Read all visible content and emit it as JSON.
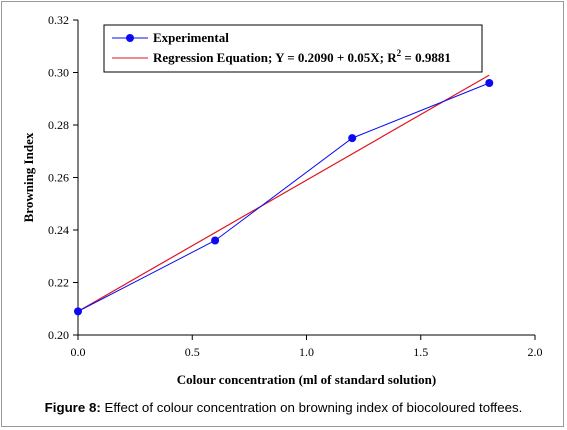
{
  "caption": {
    "figure_label": "Figure 8:",
    "text": " Effect of colour concentration on browning index of biocoloured toffees."
  },
  "colors": {
    "experimental": "#0b0bf0",
    "regression": "#e0141e",
    "axis": "#000000"
  },
  "chart_data": {
    "type": "line",
    "title": "",
    "xlabel": "Colour concentration (ml of standard solution)",
    "ylabel": "Browning Index",
    "xlim": [
      0.0,
      2.0
    ],
    "ylim": [
      0.2,
      0.32
    ],
    "x_ticks": [
      0.0,
      0.5,
      1.0,
      1.5,
      2.0
    ],
    "x_tick_labels": [
      "0.0",
      "0.5",
      "1.0",
      "1.5",
      "2.0"
    ],
    "y_ticks": [
      0.2,
      0.22,
      0.24,
      0.26,
      0.28,
      0.3,
      0.32
    ],
    "y_tick_labels": [
      "0.20",
      "0.22",
      "0.24",
      "0.26",
      "0.28",
      "0.30",
      "0.32"
    ],
    "grid": false,
    "legend_placement": "top-left",
    "series": [
      {
        "name": "Experimental",
        "style": "line-with-markers",
        "x": [
          0.0,
          0.6,
          1.2,
          1.8
        ],
        "y": [
          0.209,
          0.236,
          0.275,
          0.296
        ]
      },
      {
        "name": "Regression Equation; Y = 0.2090 + 0.05X; R² = 0.9881",
        "legend_main": "Regression Equation; Y = 0.2090 + 0.05X; R",
        "legend_sup": "2",
        "legend_tail": " = 0.9881",
        "style": "line",
        "x": [
          0.0,
          1.8
        ],
        "y": [
          0.209,
          0.299
        ]
      }
    ]
  }
}
